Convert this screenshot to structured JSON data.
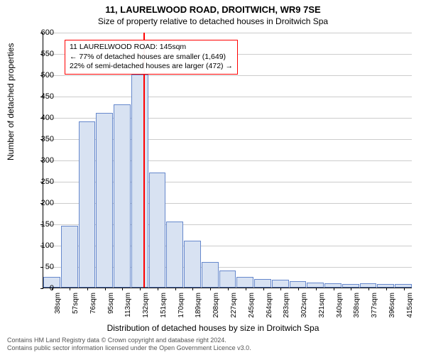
{
  "title": {
    "main": "11, LAURELWOOD ROAD, DROITWICH, WR9 7SE",
    "sub": "Size of property relative to detached houses in Droitwich Spa"
  },
  "chart": {
    "type": "histogram",
    "ylabel": "Number of detached properties",
    "xlabel": "Distribution of detached houses by size in Droitwich Spa",
    "ylim": [
      0,
      600
    ],
    "ytick_step": 50,
    "background_color": "#ffffff",
    "grid_color": "#cccccc",
    "bar_fill": "#d8e2f2",
    "bar_stroke": "#6688cc",
    "label_fontsize": 12,
    "tick_fontsize": 11,
    "categories": [
      "38sqm",
      "57sqm",
      "76sqm",
      "95sqm",
      "113sqm",
      "132sqm",
      "151sqm",
      "170sqm",
      "189sqm",
      "208sqm",
      "227sqm",
      "245sqm",
      "264sqm",
      "283sqm",
      "302sqm",
      "321sqm",
      "340sqm",
      "358sqm",
      "377sqm",
      "396sqm",
      "415sqm"
    ],
    "values": [
      25,
      145,
      390,
      410,
      430,
      500,
      270,
      155,
      110,
      60,
      40,
      25,
      20,
      18,
      15,
      12,
      10,
      8,
      10,
      8,
      8
    ],
    "reference_line": {
      "x_index": 5.7,
      "color": "#ff0000",
      "width": 2
    },
    "annotation": {
      "line1": "11 LAURELWOOD ROAD: 145sqm",
      "line2": "← 77% of detached houses are smaller (1,649)",
      "line3": "22% of semi-detached houses are larger (472) →",
      "border_color": "#ff0000",
      "text_color": "#000000"
    }
  },
  "footer": {
    "line1": "Contains HM Land Registry data © Crown copyright and database right 2024.",
    "line2": "Contains public sector information licensed under the Open Government Licence v3.0."
  }
}
